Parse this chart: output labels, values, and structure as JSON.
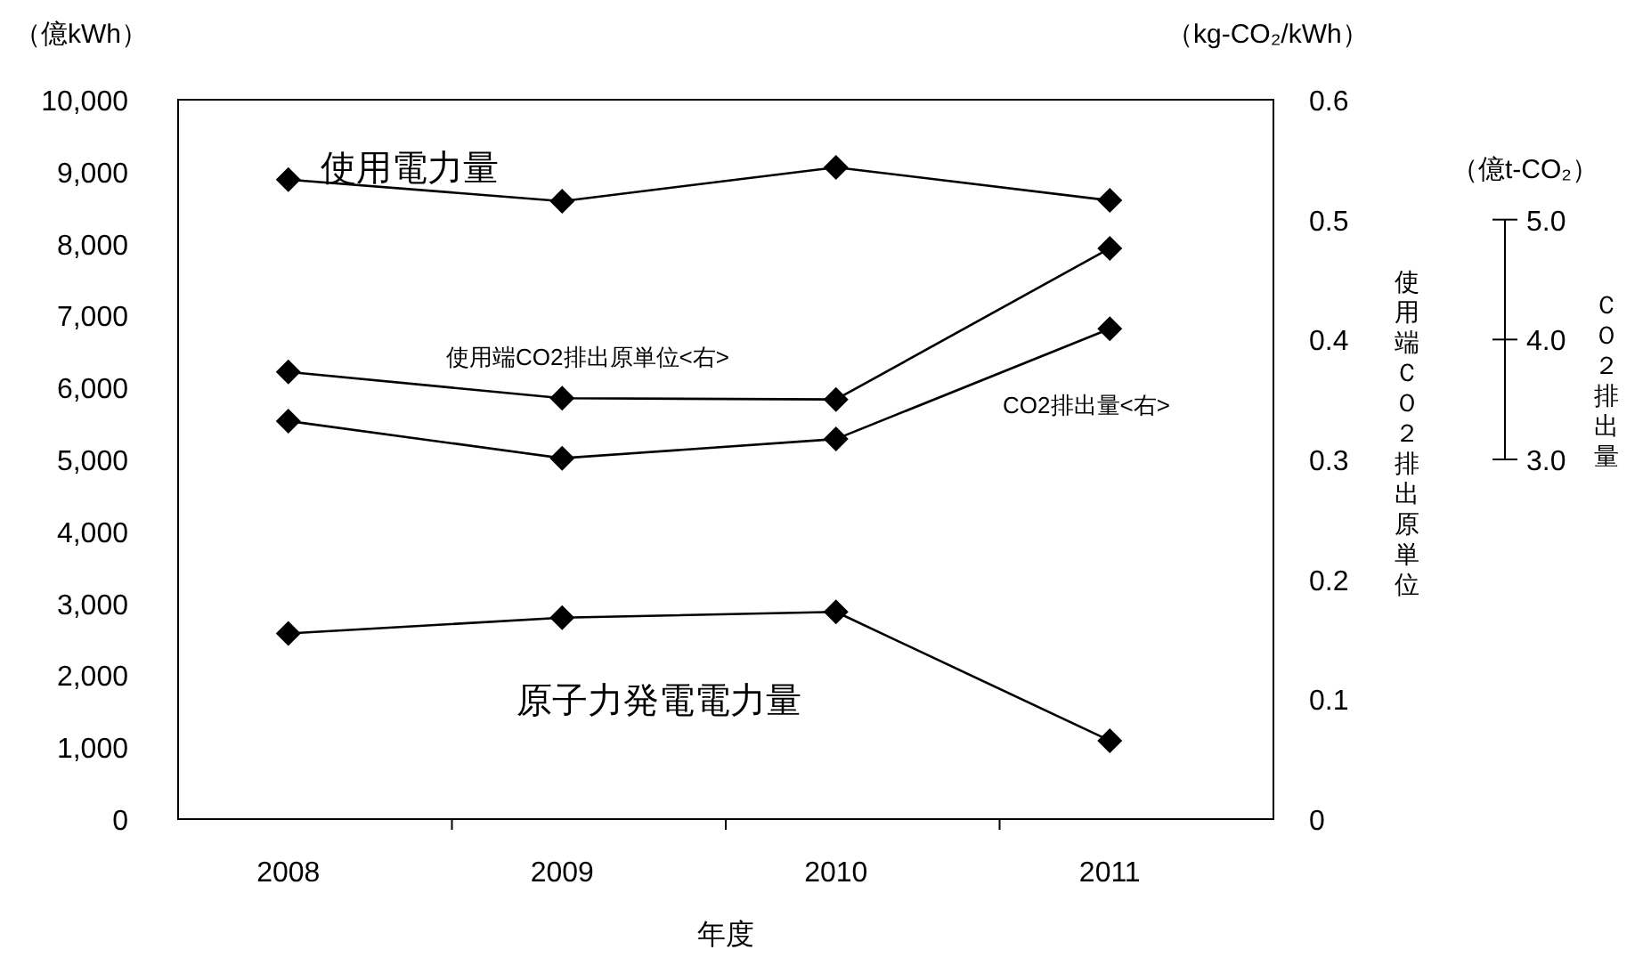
{
  "chart_data": {
    "type": "line",
    "xlabel": "年度",
    "ylabel": "（億kWh）",
    "y2label": "（kg-CO₂/kWh）",
    "y3label": "（億t-CO₂）",
    "categories": [
      "2008",
      "2009",
      "2010",
      "2011"
    ],
    "series": [
      {
        "name": "使用電力量",
        "color": "#000000",
        "values": [
          8890,
          8590,
          9060,
          8600
        ]
      },
      {
        "name": "使用端CO2排出原単位<右>",
        "color": "#000000",
        "axis": "y2",
        "values": [
          0.373,
          0.351,
          0.35,
          0.476
        ]
      },
      {
        "name": "CO2排出量<右>",
        "color": "#000000",
        "axis": "y3",
        "values": [
          3.32,
          3.01,
          3.17,
          4.09
        ]
      },
      {
        "name": "原子力発電電力量",
        "color": "#000000",
        "values": [
          2580,
          2800,
          2880,
          1090
        ]
      }
    ],
    "ylim": [
      0,
      10000
    ],
    "yticks": [
      0,
      {
        "value": 1000,
        "label": "1,000"
      },
      {
        "value": 2000,
        "label": "2,000"
      },
      {
        "value": 3000,
        "label": "3,000"
      },
      {
        "value": 4000,
        "label": "4,000"
      },
      {
        "value": 5000,
        "label": "5,000"
      },
      {
        "value": 6000,
        "label": "6,000"
      },
      {
        "value": 7000,
        "label": "7,000"
      },
      {
        "value": 8000,
        "label": "8,000"
      },
      {
        "value": 9000,
        "label": "9,000"
      },
      {
        "value": 10000,
        "label": "10,000"
      }
    ],
    "y2lim": [
      0,
      0.6
    ],
    "y2ticks": [
      0,
      0.1,
      0.2,
      0.3,
      0.4,
      0.5,
      0.6
    ],
    "y3lim": [
      0,
      6
    ],
    "y3ticks": [
      {
        "value": 3,
        "label": "3.0"
      },
      {
        "value": 4,
        "label": "4.0"
      },
      {
        "value": 5,
        "label": "5.0"
      }
    ],
    "annotations": [
      "使用端ＣＯ２排出原単位",
      "ＣＯ２排出量"
    ],
    "marker": "diamond",
    "grid": false
  }
}
